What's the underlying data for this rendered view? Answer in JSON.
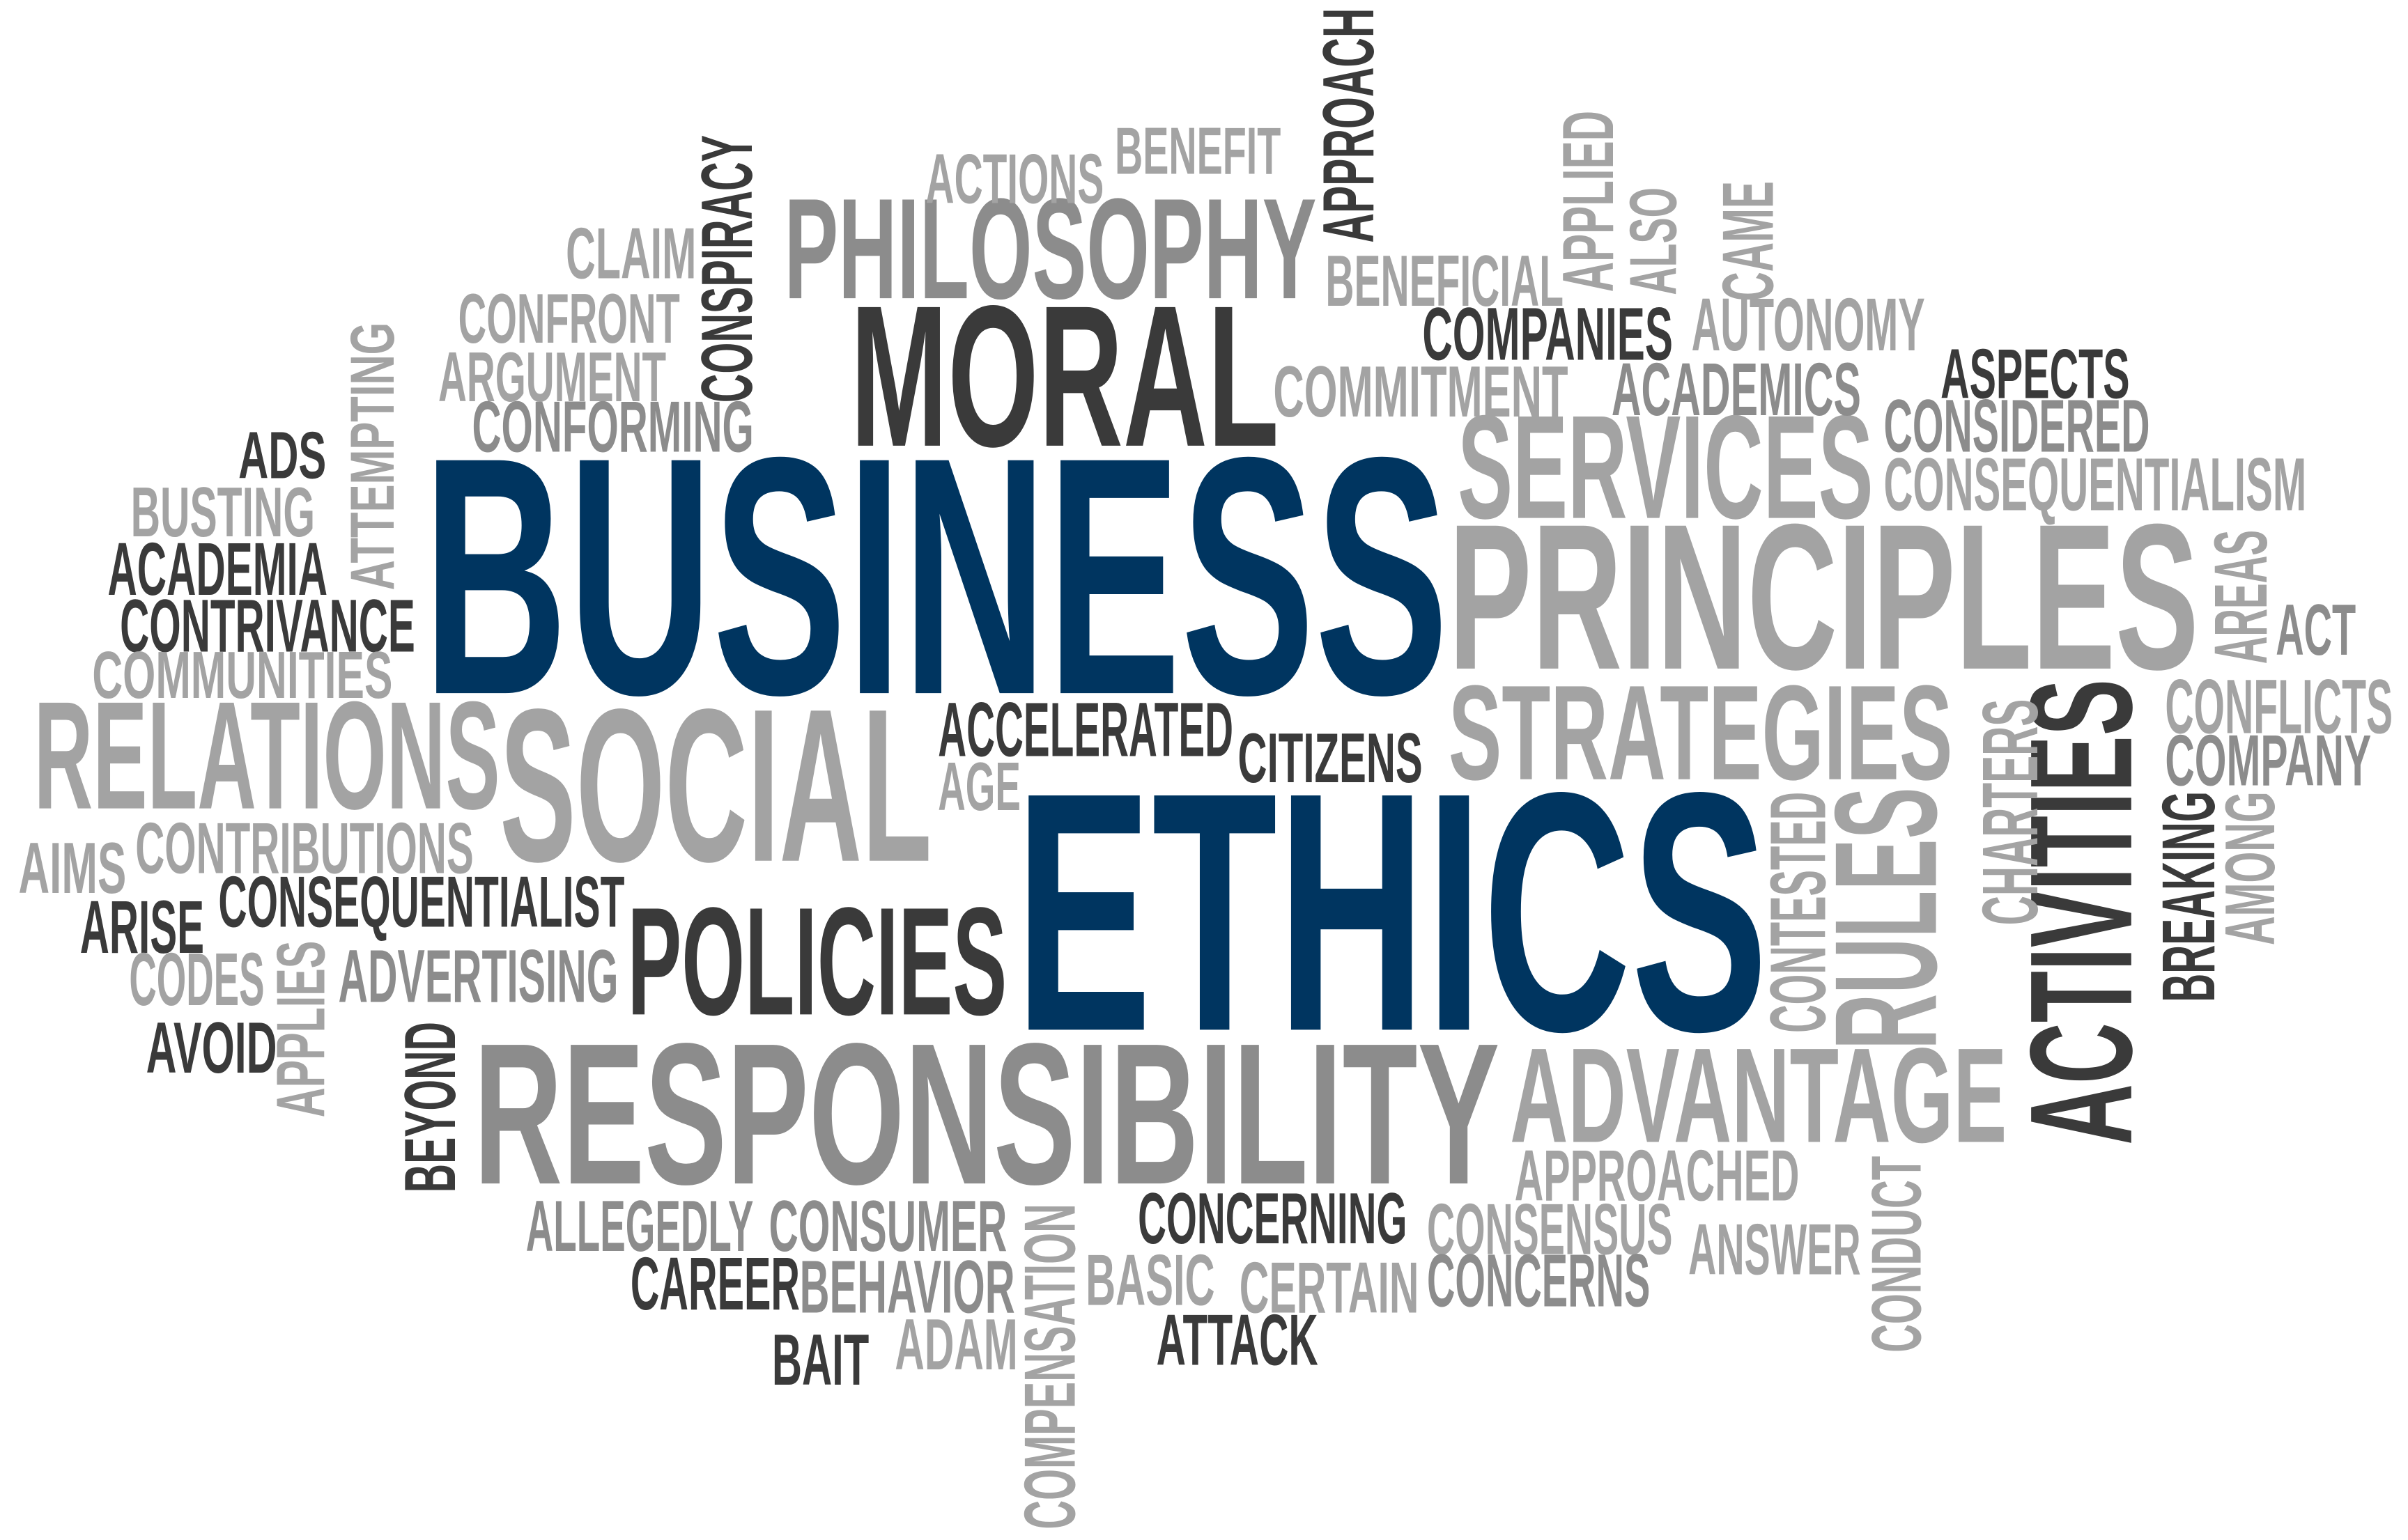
{
  "colors": {
    "background": "#ffffff",
    "navy": "#003560",
    "dark": "#3a3a3a",
    "mid": "#8c8c8c",
    "light": "#a3a3a3"
  },
  "words": {
    "business": "BUSINESS",
    "ethics": "ETHICS",
    "moral": "MORAL",
    "philosophy": "PHILOSOPHY",
    "social": "SOCIAL",
    "responsibility": "RESPONSIBILITY",
    "principles": "PRINCIPLES",
    "services": "SERVICES",
    "strategies": "STRATEGIES",
    "relations": "RELATIONS",
    "policies": "POLICIES",
    "advantage": "ADVANTAGE",
    "activities": "ACTIVITIES",
    "rules": "RULES",
    "actions": "ACTIONS",
    "benefit": "BENEFIT",
    "approach": "APPROACH",
    "conspiracy": "CONSPIRACY",
    "claim": "CLAIM",
    "confront": "CONFRONT",
    "argument": "ARGUMENT",
    "conforming": "CONFORMING",
    "attempting": "ATTEMPTING",
    "ads": "ADS",
    "busting": "BUSTING",
    "academia": "ACADEMIA",
    "contrivance": "CONTRIVANCE",
    "communities": "COMMUNITIES",
    "beneficial": "BENEFICIAL",
    "applied": "APPLIED",
    "also": "ALSO",
    "came": "CAME",
    "companies": "COMPANIES",
    "autonomy": "AUTONOMY",
    "commitment": "COMMITMENT",
    "academics": "ACADEMICS",
    "aspects": "ASPECTS",
    "considered": "CONSIDERED",
    "consequentialism": "CONSEQUENTIALISM",
    "areas": "AREAS",
    "act": "ACT",
    "conflicts": "CONFLICTS",
    "company": "COMPANY",
    "charters": "CHARTERS",
    "breaking": "BREAKING",
    "among": "AMONG",
    "accelerated": "ACCELERATED",
    "citizens": "CITIZENS",
    "age": "AGE",
    "aims": "AIMS",
    "contributions": "CONTRIBUTIONS",
    "consequentialist": "CONSEQUENTIALIST",
    "arise": "ARISE",
    "codes": "CODES",
    "applies": "APPLIES",
    "advertising": "ADVERTISING",
    "avoid": "AVOID",
    "beyond": "BEYOND",
    "contested": "CONTESTED",
    "approached": "APPROACHED",
    "conduct": "CONDUCT",
    "allegedly": "ALLEGEDLY",
    "consumer": "CONSUMER",
    "compensation": "COMPENSATION",
    "concerning": "CONCERNING",
    "consensus": "CONSENSUS",
    "answer": "ANSWER",
    "career": "CAREER",
    "behavior": "BEHAVIOR",
    "basic": "BASIC",
    "certain": "CERTAIN",
    "concerns": "CONCERNS",
    "bait": "BAIT",
    "adam": "ADAM",
    "attack": "ATTACK"
  }
}
